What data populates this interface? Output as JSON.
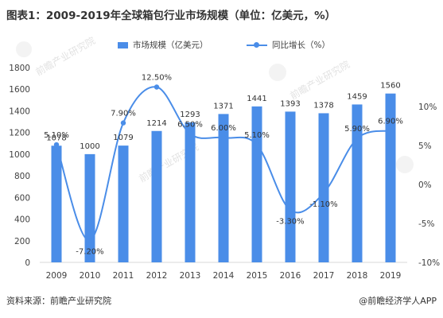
{
  "title": "图表1：2009-2019年全球箱包行业市场规模（单位：亿美元，%）",
  "source": "资料来源：前瞻产业研究院",
  "brand": "@前瞻经济学人APP",
  "watermark": "前瞻产业研究院",
  "colors": {
    "bar": "#4a8de8",
    "line": "#4a8de8",
    "axis": "#d9d9d9",
    "text": "#404040"
  },
  "chart_data": {
    "type": "bar",
    "categories": [
      "2009",
      "2010",
      "2011",
      "2012",
      "2013",
      "2014",
      "2015",
      "2016",
      "2017",
      "2018",
      "2019"
    ],
    "series": [
      {
        "name": "市场规模（亿美元）",
        "type": "bar",
        "axis": "left",
        "values": [
          1078,
          1000,
          1079,
          1214,
          1293,
          1371,
          1441,
          1393,
          1378,
          1459,
          1560
        ],
        "labels": [
          "1078",
          "1000",
          "1079",
          "1214",
          "1293",
          "1371",
          "1441",
          "1393",
          "1378",
          "1459",
          "1560"
        ]
      },
      {
        "name": "同比增长（%）",
        "type": "line",
        "axis": "right",
        "values": [
          5.1,
          -7.2,
          7.9,
          12.5,
          6.5,
          6.0,
          5.1,
          -3.3,
          -1.1,
          5.9,
          6.9
        ],
        "labels": [
          "5.10%",
          "-7.20%",
          "7.90%",
          "12.50%",
          "6.50%",
          "6.00%",
          "5.10%",
          "-3.30%",
          "-1.10%",
          "5.90%",
          "6.90%"
        ]
      }
    ],
    "y_left": {
      "min": 0,
      "max": 1800,
      "ticks": [
        0,
        200,
        400,
        600,
        800,
        1000,
        1200,
        1400,
        1600,
        1800
      ]
    },
    "y_right": {
      "min": -10,
      "max": 15,
      "ticks": [
        -10,
        -5,
        0,
        5,
        10
      ],
      "tick_labels": [
        "-10%",
        "-5%",
        "0%",
        "5%",
        "10%"
      ]
    },
    "legend_position": "top",
    "grid": false
  }
}
